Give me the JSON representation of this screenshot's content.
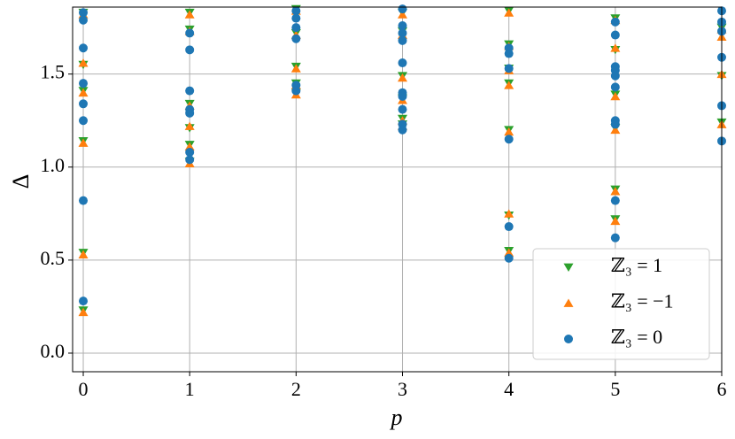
{
  "chart_data": {
    "type": "scatter",
    "xlabel": "p",
    "ylabel": "Δ",
    "xlim": [
      -0.1,
      6.0
    ],
    "ylim": [
      -0.1,
      1.86
    ],
    "xticks": [
      0,
      1,
      2,
      3,
      4,
      5,
      6
    ],
    "yticks": [
      {
        "value": 0,
        "label": "0.0"
      },
      {
        "value": 0.5,
        "label": "0.5"
      },
      {
        "value": 1,
        "label": "1.0"
      },
      {
        "value": 1.5,
        "label": "1.5"
      }
    ],
    "grid": true,
    "legend": "lower right",
    "series": [
      {
        "name": "ℤ₃ = 1",
        "color": "#2ca02c",
        "marker": "triangle-down",
        "x": [
          0,
          0,
          0,
          0,
          0,
          0,
          1,
          1,
          1,
          1,
          1,
          1,
          2,
          2,
          2,
          2,
          2,
          3,
          3,
          3,
          3,
          3,
          3,
          4,
          4,
          4,
          4,
          4,
          4,
          4,
          5,
          5,
          5,
          5,
          5,
          5,
          6,
          6,
          6
        ],
        "values": [
          1.83,
          1.55,
          1.41,
          1.14,
          0.54,
          0.23,
          1.83,
          1.74,
          1.34,
          1.21,
          1.12,
          1.03,
          1.85,
          1.72,
          1.54,
          1.45,
          1.4,
          1.83,
          1.73,
          1.49,
          1.37,
          1.26,
          1.23,
          1.84,
          1.66,
          1.53,
          1.45,
          1.2,
          0.74,
          0.55,
          1.8,
          1.63,
          1.39,
          1.21,
          0.88,
          0.72,
          1.75,
          1.49,
          1.24
        ]
      },
      {
        "name": "ℤ₃ = −1",
        "color": "#ff7f0e",
        "marker": "triangle-up",
        "x": [
          0,
          0,
          0,
          0,
          0,
          0,
          1,
          1,
          1,
          1,
          1,
          1,
          2,
          2,
          2,
          2,
          2,
          3,
          3,
          3,
          3,
          3,
          3,
          4,
          4,
          4,
          4,
          4,
          4,
          4,
          5,
          5,
          5,
          5,
          5,
          5,
          6,
          6,
          6,
          6
        ],
        "values": [
          1.82,
          1.56,
          1.4,
          1.13,
          0.53,
          0.22,
          1.82,
          1.73,
          1.33,
          1.22,
          1.11,
          1.02,
          1.84,
          1.71,
          1.53,
          1.44,
          1.39,
          1.82,
          1.71,
          1.48,
          1.36,
          1.25,
          1.22,
          1.83,
          1.65,
          1.52,
          1.44,
          1.19,
          0.75,
          0.54,
          1.79,
          1.64,
          1.38,
          1.2,
          0.87,
          0.71,
          1.74,
          1.7,
          1.5,
          1.23
        ]
      },
      {
        "name": "ℤ₃ = 0",
        "color": "#1f77b4",
        "marker": "circle",
        "x": [
          0,
          0,
          0,
          0,
          0,
          0,
          0,
          0,
          1,
          1,
          1,
          1,
          1,
          1,
          1,
          2,
          2,
          2,
          2,
          2,
          2,
          3,
          3,
          3,
          3,
          3,
          3,
          3,
          3,
          3,
          3,
          4,
          4,
          4,
          4,
          4,
          4,
          5,
          5,
          5,
          5,
          5,
          5,
          5,
          5,
          5,
          5,
          6,
          6,
          6,
          6,
          6,
          6
        ],
        "values": [
          1.83,
          1.79,
          1.64,
          1.45,
          1.34,
          1.25,
          0.82,
          0.28,
          1.72,
          1.63,
          1.41,
          1.31,
          1.29,
          1.08,
          1.04,
          1.84,
          1.8,
          1.75,
          1.69,
          1.44,
          1.41,
          1.85,
          1.76,
          1.72,
          1.68,
          1.56,
          1.4,
          1.38,
          1.31,
          1.23,
          1.2,
          1.64,
          1.61,
          1.53,
          1.15,
          0.68,
          0.51,
          1.78,
          1.71,
          1.54,
          1.52,
          1.49,
          1.43,
          1.25,
          1.23,
          0.82,
          0.62,
          1.84,
          1.78,
          1.73,
          1.59,
          1.33,
          1.14
        ]
      }
    ]
  }
}
